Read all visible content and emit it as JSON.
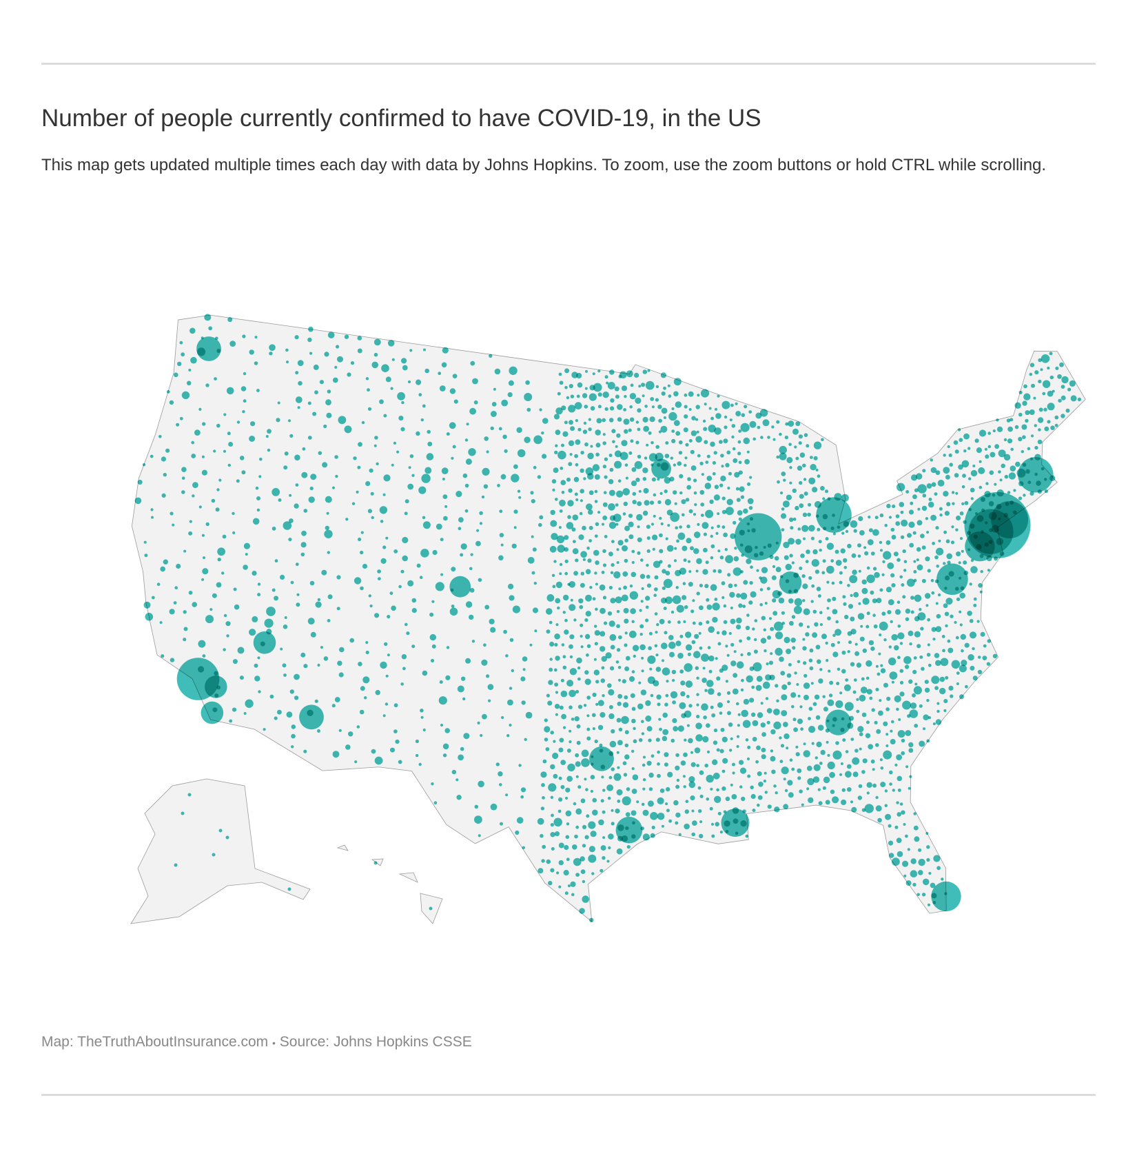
{
  "header": {
    "title": "Number of people currently confirmed to have COVID-19, in the US",
    "subtitle": "This map gets updated multiple times each day with data by Johns Hopkins. To zoom, use the zoom buttons or hold CTRL while scrolling."
  },
  "footer": {
    "map_credit": "Map: TheTruthAboutInsurance.com",
    "separator": "•",
    "source": "Source: Johns Hopkins CSSE"
  },
  "map": {
    "type": "proportional-symbol",
    "region": "United States (counties)",
    "land_color": "#f2f2f2",
    "border_color": "#9a9a9a",
    "bubble_color": "#1fb1ac",
    "hotspots": [
      {
        "place": "New York City",
        "lon": -73.95,
        "lat": 40.7,
        "magnitude": 100
      },
      {
        "place": "New Jersey",
        "lon": -74.4,
        "lat": 40.5,
        "magnitude": 40
      },
      {
        "place": "Long Island",
        "lon": -73.2,
        "lat": 40.8,
        "magnitude": 25
      },
      {
        "place": "Boston",
        "lon": -71.1,
        "lat": 42.35,
        "magnitude": 22
      },
      {
        "place": "Philadelphia",
        "lon": -75.2,
        "lat": 40.0,
        "magnitude": 14
      },
      {
        "place": "Washington DC area",
        "lon": -77.1,
        "lat": 38.9,
        "magnitude": 16
      },
      {
        "place": "Chicago",
        "lon": -87.75,
        "lat": 41.85,
        "magnitude": 45
      },
      {
        "place": "Detroit",
        "lon": -83.2,
        "lat": 42.4,
        "magnitude": 22
      },
      {
        "place": "Los Angeles",
        "lon": -118.2,
        "lat": 34.05,
        "magnitude": 35
      },
      {
        "place": "New Orleans",
        "lon": -90.1,
        "lat": 29.95,
        "magnitude": 12
      },
      {
        "place": "Miami",
        "lon": -80.3,
        "lat": 25.8,
        "magnitude": 14
      },
      {
        "place": "Atlanta",
        "lon": -84.4,
        "lat": 33.75,
        "magnitude": 9
      },
      {
        "place": "Houston",
        "lon": -95.4,
        "lat": 29.8,
        "magnitude": 10
      },
      {
        "place": "Dallas",
        "lon": -96.8,
        "lat": 32.8,
        "magnitude": 8
      },
      {
        "place": "Seattle",
        "lon": -122.3,
        "lat": 47.6,
        "magnitude": 8
      },
      {
        "place": "Denver",
        "lon": -104.9,
        "lat": 39.7,
        "magnitude": 5
      },
      {
        "place": "Phoenix",
        "lon": -112.0,
        "lat": 33.45,
        "magnitude": 8
      },
      {
        "place": "Las Vegas",
        "lon": -115.15,
        "lat": 36.15,
        "magnitude": 6
      },
      {
        "place": "San Diego",
        "lon": -117.1,
        "lat": 32.8,
        "magnitude": 6
      },
      {
        "place": "Indianapolis",
        "lon": -86.15,
        "lat": 39.8,
        "magnitude": 6
      },
      {
        "place": "Minneapolis",
        "lon": -93.3,
        "lat": 44.95,
        "magnitude": 4
      },
      {
        "place": "Riverside",
        "lon": -117.2,
        "lat": 33.9,
        "magnitude": 6
      }
    ]
  }
}
